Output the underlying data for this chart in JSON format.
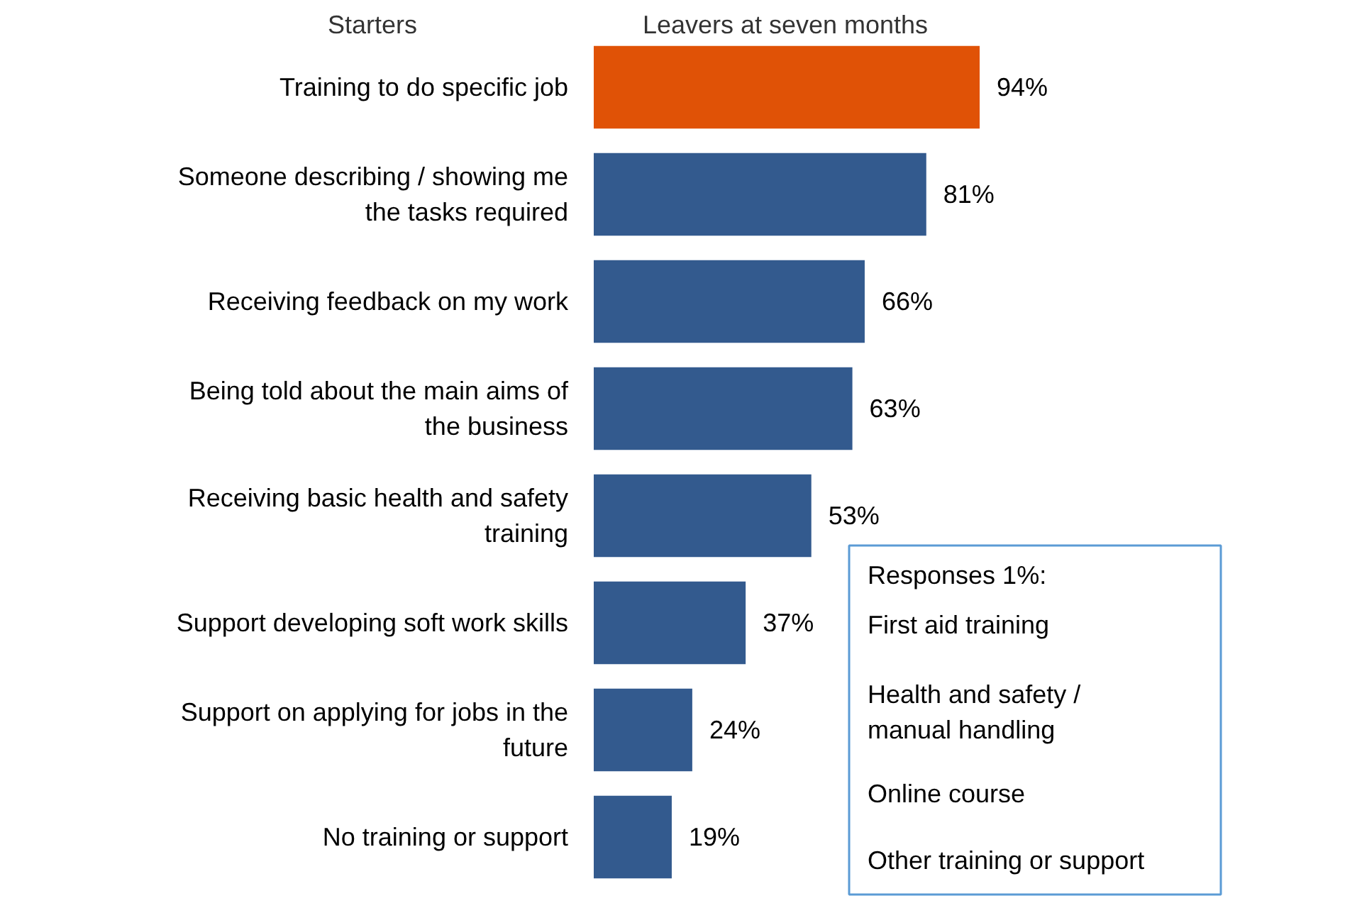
{
  "chart_data": {
    "type": "bar",
    "orientation": "horizontal",
    "categories": [
      "Training to do specific job",
      "Someone describing / showing me\nthe tasks required",
      "Receiving feedback on my work",
      "Being told about the main aims of\nthe business",
      "Receiving basic health and safety\ntraining",
      "Support developing soft work skills",
      "Support on applying for jobs in the\nfuture",
      "No training or support"
    ],
    "values": [
      94,
      81,
      66,
      63,
      53,
      37,
      24,
      19
    ],
    "colors": [
      "#e05206",
      "#335a8e",
      "#335a8e",
      "#335a8e",
      "#335a8e",
      "#335a8e",
      "#335a8e",
      "#335a8e"
    ],
    "value_labels": [
      "94%",
      "81%",
      "66%",
      "63%",
      "53%",
      "37%",
      "24%",
      "19%"
    ],
    "annotations": [
      "Starters",
      "Leavers at seven months",
      "Responses 1%:",
      "First aid training",
      "Health and safety /\nmanual handling",
      "Online course",
      "Other training or support"
    ]
  }
}
